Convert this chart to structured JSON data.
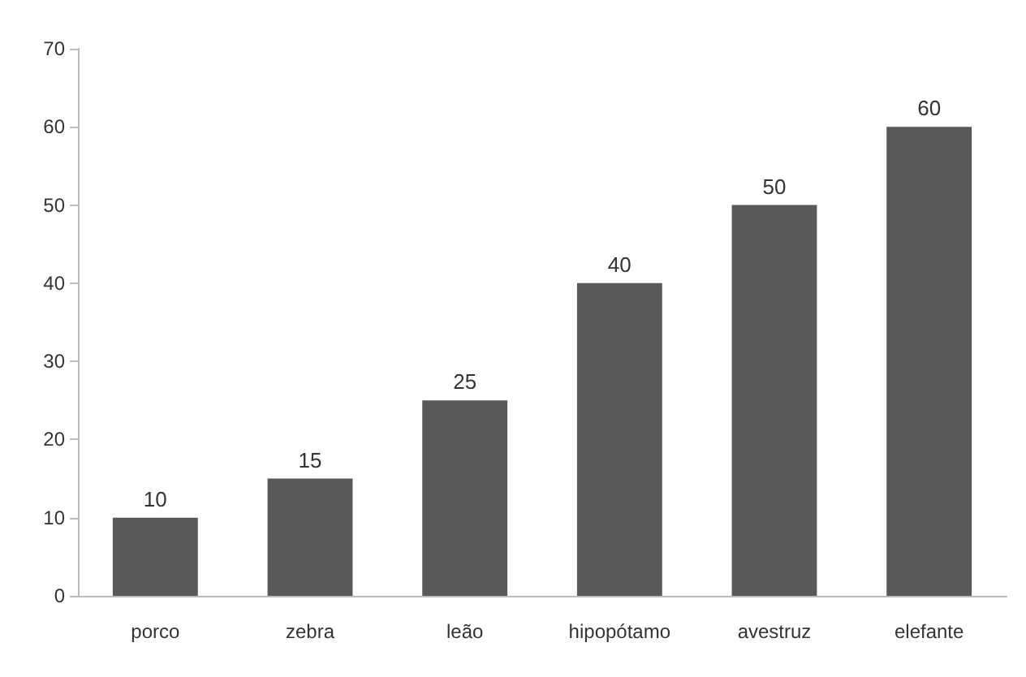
{
  "chart_data": {
    "type": "bar",
    "categories": [
      "porco",
      "zebra",
      "leão",
      "hipopótamo",
      "avestruz",
      "elefante"
    ],
    "values": [
      10,
      15,
      25,
      40,
      50,
      60
    ],
    "color": "#595959",
    "ylim": [
      0,
      70
    ],
    "yticks": [
      0,
      10,
      20,
      30,
      40,
      50,
      60,
      70
    ],
    "grid": false,
    "data_labels": true
  }
}
